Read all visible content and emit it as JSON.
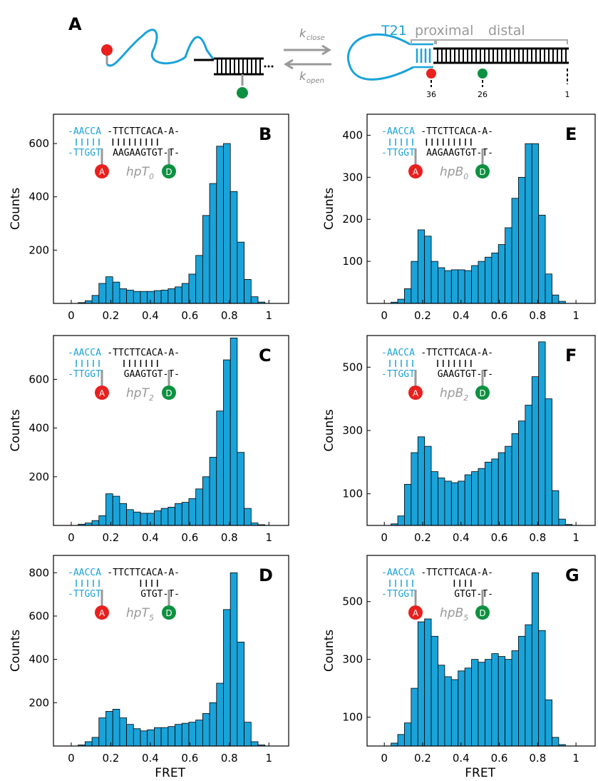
{
  "diagram": {
    "panel": "A",
    "k_close": "k",
    "k_close_sub": "close",
    "k_open": "k",
    "k_open_sub": "open",
    "loop": "T21",
    "proximal": "proximal",
    "distal": "distal",
    "pos_36": "36",
    "pos_26": "26",
    "pos_1": "1"
  },
  "chart_data": [
    {
      "type": "histogram",
      "panel": "B",
      "ylabel": "Counts",
      "color": "#1aa3d9",
      "xlim": [
        -0.09,
        1.1
      ],
      "ylim": [
        0,
        710
      ],
      "xticks": [
        0,
        0.2,
        0.4,
        0.6,
        0.8,
        1
      ],
      "yticks": [
        200,
        400,
        600
      ],
      "bins": [
        0,
        0.035,
        0.07,
        0.105,
        0.14,
        0.175,
        0.21,
        0.245,
        0.28,
        0.315,
        0.35,
        0.385,
        0.42,
        0.455,
        0.49,
        0.525,
        0.56,
        0.595,
        0.63,
        0.665,
        0.7,
        0.735,
        0.77,
        0.805,
        0.84,
        0.875,
        0.91,
        0.945,
        0.98
      ],
      "values": [
        0,
        3,
        10,
        30,
        75,
        100,
        80,
        55,
        50,
        45,
        45,
        45,
        48,
        50,
        55,
        62,
        75,
        110,
        180,
        330,
        450,
        590,
        600,
        420,
        230,
        90,
        25,
        5
      ],
      "inset": {
        "top_left": "-AACCA",
        "top_right": "-TTCTTCACA-A-",
        "bottom_left": "-TTGGT",
        "bottom_right": "AAGAAGTGT-T-",
        "acceptor": "A",
        "donor": "D",
        "name": "hpT",
        "name_sub": "0"
      }
    },
    {
      "type": "histogram",
      "panel": "C",
      "ylabel": "Counts",
      "color": "#1aa3d9",
      "xlim": [
        -0.09,
        1.1
      ],
      "ylim": [
        0,
        780
      ],
      "xticks": [
        0,
        0.2,
        0.4,
        0.6,
        0.8,
        1
      ],
      "yticks": [
        200,
        400,
        600
      ],
      "bins": [
        0,
        0.035,
        0.07,
        0.105,
        0.14,
        0.175,
        0.21,
        0.245,
        0.28,
        0.315,
        0.35,
        0.385,
        0.42,
        0.455,
        0.49,
        0.525,
        0.56,
        0.595,
        0.63,
        0.665,
        0.7,
        0.735,
        0.77,
        0.805,
        0.84,
        0.875,
        0.91,
        0.945,
        0.98
      ],
      "values": [
        0,
        5,
        10,
        20,
        40,
        130,
        120,
        90,
        65,
        55,
        50,
        50,
        60,
        70,
        75,
        90,
        95,
        110,
        150,
        200,
        280,
        470,
        680,
        770,
        300,
        70,
        10,
        3
      ],
      "inset": {
        "top_left": "-AACCA",
        "top_right": "-TTCTTCACA-A-",
        "bottom_left": "-TTGGT",
        "bottom_right": "GAAGTGT-T-",
        "acceptor": "A",
        "donor": "D",
        "name": "hpT",
        "name_sub": "2"
      }
    },
    {
      "type": "histogram",
      "panel": "D",
      "ylabel": "Counts",
      "xlabel": "FRET",
      "color": "#1aa3d9",
      "xlim": [
        -0.09,
        1.1
      ],
      "ylim": [
        0,
        880
      ],
      "xticks": [
        0,
        0.2,
        0.4,
        0.6,
        0.8,
        1
      ],
      "yticks": [
        200,
        400,
        600,
        800
      ],
      "bins": [
        0,
        0.035,
        0.07,
        0.105,
        0.14,
        0.175,
        0.21,
        0.245,
        0.28,
        0.315,
        0.35,
        0.385,
        0.42,
        0.455,
        0.49,
        0.525,
        0.56,
        0.595,
        0.63,
        0.665,
        0.7,
        0.735,
        0.77,
        0.805,
        0.84,
        0.875,
        0.91,
        0.945,
        0.98
      ],
      "values": [
        0,
        5,
        20,
        40,
        130,
        160,
        170,
        130,
        100,
        80,
        70,
        75,
        85,
        85,
        90,
        100,
        105,
        110,
        120,
        150,
        200,
        290,
        630,
        800,
        480,
        110,
        20,
        5
      ],
      "inset": {
        "top_left": "-AACCA",
        "top_right": "-TTCTTCACA-A-",
        "bottom_left": "-TTGGT",
        "bottom_right": "GTGT-T-",
        "acceptor": "A",
        "donor": "D",
        "name": "hpT",
        "name_sub": "5"
      }
    },
    {
      "type": "histogram",
      "panel": "E",
      "ylabel": "Counts",
      "color": "#1aa3d9",
      "xlim": [
        -0.09,
        1.1
      ],
      "ylim": [
        0,
        450
      ],
      "xticks": [
        0,
        0.2,
        0.4,
        0.6,
        0.8,
        1
      ],
      "yticks": [
        100,
        200,
        300,
        400
      ],
      "bins": [
        0,
        0.035,
        0.07,
        0.105,
        0.14,
        0.175,
        0.21,
        0.245,
        0.28,
        0.315,
        0.35,
        0.385,
        0.42,
        0.455,
        0.49,
        0.525,
        0.56,
        0.595,
        0.63,
        0.665,
        0.7,
        0.735,
        0.77,
        0.805,
        0.84,
        0.875,
        0.91,
        0.945,
        0.98
      ],
      "values": [
        0,
        3,
        10,
        35,
        100,
        175,
        160,
        100,
        85,
        78,
        80,
        80,
        78,
        90,
        100,
        110,
        120,
        140,
        180,
        250,
        300,
        380,
        380,
        210,
        70,
        20,
        5,
        0
      ],
      "inset": {
        "top_left": "-AACCA",
        "top_right": "-TTCTTCACA-A-",
        "bottom_left": "-TTGGT",
        "bottom_right": "AAGAAGTGT-T-",
        "acceptor": "A",
        "donor": "D",
        "name": "hpB",
        "name_sub": "0"
      }
    },
    {
      "type": "histogram",
      "panel": "F",
      "ylabel": "Counts",
      "color": "#1aa3d9",
      "xlim": [
        -0.09,
        1.1
      ],
      "ylim": [
        0,
        600
      ],
      "xticks": [
        0,
        0.2,
        0.4,
        0.6,
        0.8,
        1
      ],
      "yticks": [
        100,
        300,
        500
      ],
      "bins": [
        0,
        0.035,
        0.07,
        0.105,
        0.14,
        0.175,
        0.21,
        0.245,
        0.28,
        0.315,
        0.35,
        0.385,
        0.42,
        0.455,
        0.49,
        0.525,
        0.56,
        0.595,
        0.63,
        0.665,
        0.7,
        0.735,
        0.77,
        0.805,
        0.84,
        0.875,
        0.91,
        0.945,
        0.98
      ],
      "values": [
        0,
        5,
        30,
        130,
        230,
        280,
        250,
        170,
        150,
        140,
        135,
        140,
        160,
        170,
        180,
        200,
        210,
        230,
        250,
        290,
        330,
        380,
        470,
        580,
        400,
        110,
        20,
        3
      ],
      "inset": {
        "top_left": "-AACCA",
        "top_right": "-TTCTTCACA-A-",
        "bottom_left": "-TTGGT",
        "bottom_right": "GAAGTGT-T-",
        "acceptor": "A",
        "donor": "D",
        "name": "hpB",
        "name_sub": "2"
      }
    },
    {
      "type": "histogram",
      "panel": "G",
      "ylabel": "Counts",
      "xlabel": "FRET",
      "color": "#1aa3d9",
      "xlim": [
        -0.09,
        1.1
      ],
      "ylim": [
        0,
        660
      ],
      "xticks": [
        0,
        0.2,
        0.4,
        0.6,
        0.8,
        1
      ],
      "yticks": [
        100,
        300,
        500
      ],
      "bins": [
        0,
        0.035,
        0.07,
        0.105,
        0.14,
        0.175,
        0.21,
        0.245,
        0.28,
        0.315,
        0.35,
        0.385,
        0.42,
        0.455,
        0.49,
        0.525,
        0.56,
        0.595,
        0.63,
        0.665,
        0.7,
        0.735,
        0.77,
        0.805,
        0.84,
        0.875,
        0.91,
        0.945,
        0.98
      ],
      "values": [
        0,
        10,
        40,
        80,
        200,
        430,
        440,
        380,
        280,
        240,
        230,
        260,
        270,
        300,
        290,
        300,
        320,
        310,
        300,
        330,
        380,
        420,
        600,
        400,
        160,
        30,
        5,
        0
      ],
      "inset": {
        "top_left": "-AACCA",
        "top_right": "-TTCTTCACA-A-",
        "bottom_left": "-TTGGT",
        "bottom_right": "GTGT-T-",
        "acceptor": "A",
        "donor": "D",
        "name": "hpB",
        "name_sub": "5"
      }
    }
  ]
}
